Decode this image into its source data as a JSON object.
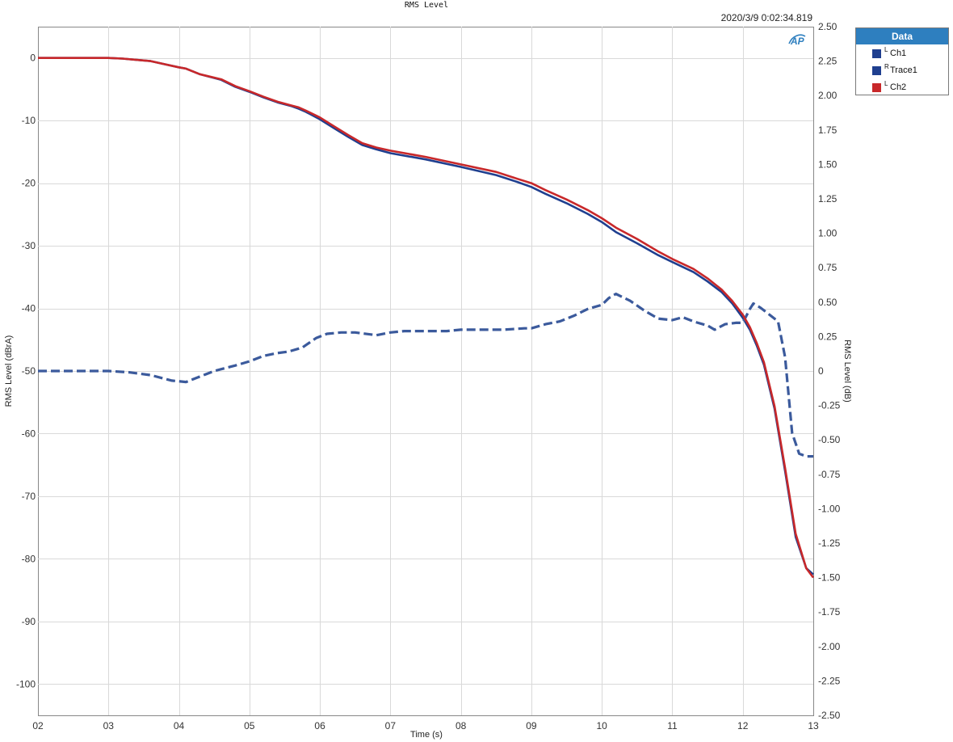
{
  "chart_data": {
    "type": "line",
    "title": "RMS Level",
    "timestamp": "2020/3/9 0:02:34.819",
    "xlabel": "Time (s)",
    "ylabel_left": "RMS Level (dBrA)",
    "ylabel_right": "RMS Level (dB)",
    "xlim": [
      2,
      13
    ],
    "ylim_left": [
      -105,
      5
    ],
    "ylim_right": [
      -2.5,
      2.5
    ],
    "x_tick_labels": [
      "02",
      "03",
      "04",
      "05",
      "06",
      "07",
      "08",
      "09",
      "10",
      "11",
      "12",
      "13"
    ],
    "y_left_ticks": [
      0,
      -10,
      -20,
      -30,
      -40,
      -50,
      -60,
      -70,
      -80,
      -90,
      -100
    ],
    "y_right_ticks": [
      "2.50",
      "2.25",
      "2.00",
      "1.75",
      "1.50",
      "1.25",
      "1.00",
      "0.75",
      "0.50",
      "0.25",
      "0",
      "-0.25",
      "-0.50",
      "-0.75",
      "-1.00",
      "-1.25",
      "-1.50",
      "-1.75",
      "-2.00",
      "-2.25",
      "-2.50"
    ],
    "grid": true,
    "legend_position": "outside-top-right",
    "series": [
      {
        "name": "Ch1",
        "channel": "L",
        "axis": "left",
        "color": "#1f3f8f",
        "style": "solid",
        "x": [
          2,
          2.5,
          3.0,
          3.2,
          3.4,
          3.6,
          3.8,
          4.0,
          4.1,
          4.3,
          4.6,
          4.8,
          5.0,
          5.2,
          5.4,
          5.6,
          5.7,
          5.8,
          6.0,
          6.2,
          6.4,
          6.6,
          6.8,
          7.0,
          7.5,
          8.0,
          8.5,
          8.8,
          9.0,
          9.2,
          9.5,
          9.8,
          10.0,
          10.2,
          10.5,
          10.8,
          11.0,
          11.3,
          11.5,
          11.7,
          11.85,
          12.0,
          12.1,
          12.2,
          12.3,
          12.45,
          12.6,
          12.75,
          12.9,
          13.0
        ],
        "y": [
          0,
          0,
          0,
          -0.1,
          -0.3,
          -0.5,
          -1.0,
          -1.5,
          -1.7,
          -2.6,
          -3.5,
          -4.6,
          -5.4,
          -6.3,
          -7.1,
          -7.7,
          -8.1,
          -8.6,
          -9.8,
          -11.2,
          -12.6,
          -13.9,
          -14.6,
          -15.2,
          -16.2,
          -17.4,
          -18.7,
          -19.8,
          -20.6,
          -21.7,
          -23.2,
          -24.9,
          -26.2,
          -27.8,
          -29.6,
          -31.5,
          -32.6,
          -34.2,
          -35.7,
          -37.4,
          -39.2,
          -41.5,
          -43.4,
          -46.0,
          -49.0,
          -56.0,
          -66.0,
          -76.5,
          -81.5,
          -82.5
        ]
      },
      {
        "name": "Trace1",
        "channel": "R",
        "axis": "right",
        "color": "#3b5a9c",
        "style": "dashed",
        "x": [
          2,
          2.5,
          3.0,
          3.3,
          3.6,
          3.9,
          4.1,
          4.3,
          4.5,
          4.8,
          5.0,
          5.2,
          5.4,
          5.55,
          5.75,
          5.95,
          6.1,
          6.3,
          6.5,
          6.8,
          7.0,
          7.2,
          7.5,
          7.8,
          8.0,
          8.3,
          8.6,
          8.9,
          9.0,
          9.2,
          9.4,
          9.6,
          9.8,
          10.0,
          10.1,
          10.2,
          10.4,
          10.6,
          10.8,
          11.0,
          11.15,
          11.3,
          11.5,
          11.6,
          11.75,
          11.9,
          12.0,
          12.1,
          12.15,
          12.25,
          12.35,
          12.5,
          12.6,
          12.7,
          12.8,
          12.9,
          13.0
        ],
        "y": [
          0.0,
          0.0,
          0.0,
          -0.01,
          -0.03,
          -0.07,
          -0.08,
          -0.04,
          0.0,
          0.04,
          0.07,
          0.11,
          0.13,
          0.14,
          0.17,
          0.24,
          0.27,
          0.28,
          0.28,
          0.26,
          0.28,
          0.29,
          0.29,
          0.29,
          0.3,
          0.3,
          0.3,
          0.31,
          0.31,
          0.34,
          0.36,
          0.4,
          0.45,
          0.48,
          0.53,
          0.56,
          0.51,
          0.44,
          0.38,
          0.37,
          0.39,
          0.36,
          0.33,
          0.3,
          0.34,
          0.35,
          0.35,
          0.45,
          0.49,
          0.46,
          0.42,
          0.36,
          0.1,
          -0.45,
          -0.6,
          -0.62,
          -0.62
        ]
      },
      {
        "name": "Ch2",
        "channel": "L",
        "axis": "left",
        "color": "#c8282a",
        "style": "solid",
        "x": [
          2,
          2.5,
          3.0,
          3.2,
          3.4,
          3.6,
          3.8,
          4.0,
          4.1,
          4.3,
          4.6,
          4.8,
          5.0,
          5.2,
          5.4,
          5.6,
          5.7,
          5.8,
          6.0,
          6.2,
          6.4,
          6.6,
          6.8,
          7.0,
          7.5,
          8.0,
          8.5,
          8.8,
          9.0,
          9.2,
          9.5,
          9.8,
          10.0,
          10.2,
          10.5,
          10.8,
          11.0,
          11.3,
          11.5,
          11.7,
          11.85,
          12.0,
          12.1,
          12.2,
          12.3,
          12.45,
          12.6,
          12.75,
          12.9,
          13.0
        ],
        "y": [
          0,
          0,
          0,
          -0.1,
          -0.3,
          -0.5,
          -1.0,
          -1.5,
          -1.7,
          -2.6,
          -3.4,
          -4.5,
          -5.3,
          -6.2,
          -7.0,
          -7.6,
          -7.9,
          -8.4,
          -9.5,
          -10.9,
          -12.3,
          -13.6,
          -14.3,
          -14.8,
          -15.8,
          -17.0,
          -18.2,
          -19.3,
          -20.0,
          -21.1,
          -22.6,
          -24.3,
          -25.6,
          -27.1,
          -28.9,
          -30.9,
          -32.1,
          -33.7,
          -35.2,
          -37.0,
          -38.8,
          -41.0,
          -43.0,
          -45.6,
          -48.6,
          -55.6,
          -65.5,
          -76.0,
          -81.5,
          -83.0
        ]
      }
    ]
  }
}
